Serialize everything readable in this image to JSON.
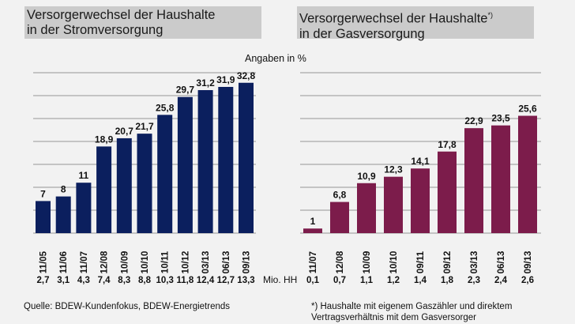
{
  "unit_label": "Angaben in %",
  "mio_label": "Mio. HH",
  "source": "Quelle:   BDEW-Kundenfokus, BDEW-Energietrends",
  "footnote_line1": "*) Haushalte mit eigenem Gaszähler und direktem",
  "footnote_line2": "Vertragsverhältnis mit dem Gasversorger",
  "chart_data": [
    {
      "type": "bar",
      "title_line1": "Versorgerwechsel der Haushalte",
      "title_line2": "in der Stromversorgung",
      "title_superscript": "",
      "categories": [
        "11/05",
        "11/06",
        "11/07",
        "12/08",
        "10/09",
        "10/10",
        "10/11",
        "10/12",
        "03/13",
        "06/13",
        "09/13"
      ],
      "values": [
        7,
        8,
        11,
        18.9,
        20.7,
        21.7,
        25.8,
        29.7,
        31.2,
        31.9,
        32.8
      ],
      "value_labels": [
        "7",
        "8",
        "11",
        "18,9",
        "20,7",
        "21,7",
        "25,8",
        "29,7",
        "31,2",
        "31,9",
        "32,8"
      ],
      "households_mio": [
        "2,7",
        "3,1",
        "4,3",
        "7,4",
        "8,3",
        "8,8",
        "10,3",
        "11,8",
        "12,4",
        "12,7",
        "13,3"
      ],
      "ylabel": "Angaben in %",
      "ylim": [
        0,
        35
      ],
      "grid": true,
      "grid_step": 5,
      "color": "#0b1f5e"
    },
    {
      "type": "bar",
      "title_line1": "Versorgerwechsel der Haushalte",
      "title_line2": "in der Gasversorgung",
      "title_superscript": "*)",
      "categories": [
        "11/07",
        "12/08",
        "10/09",
        "10/10",
        "09/11",
        "09/12",
        "03/13",
        "06/13",
        "09/13"
      ],
      "values": [
        1,
        6.8,
        10.9,
        12.3,
        14.1,
        17.8,
        22.9,
        23.5,
        25.6
      ],
      "value_labels": [
        "1",
        "6,8",
        "10,9",
        "12,3",
        "14,1",
        "17,8",
        "22,9",
        "23,5",
        "25,6"
      ],
      "households_mio": [
        "0,1",
        "0,7",
        "1,1",
        "1,2",
        "1,4",
        "1,8",
        "2,3",
        "2,4",
        "2,6"
      ],
      "ylabel": "Angaben in %",
      "ylim": [
        0,
        35
      ],
      "grid": true,
      "grid_step": 5,
      "color": "#7c1c4b"
    }
  ]
}
